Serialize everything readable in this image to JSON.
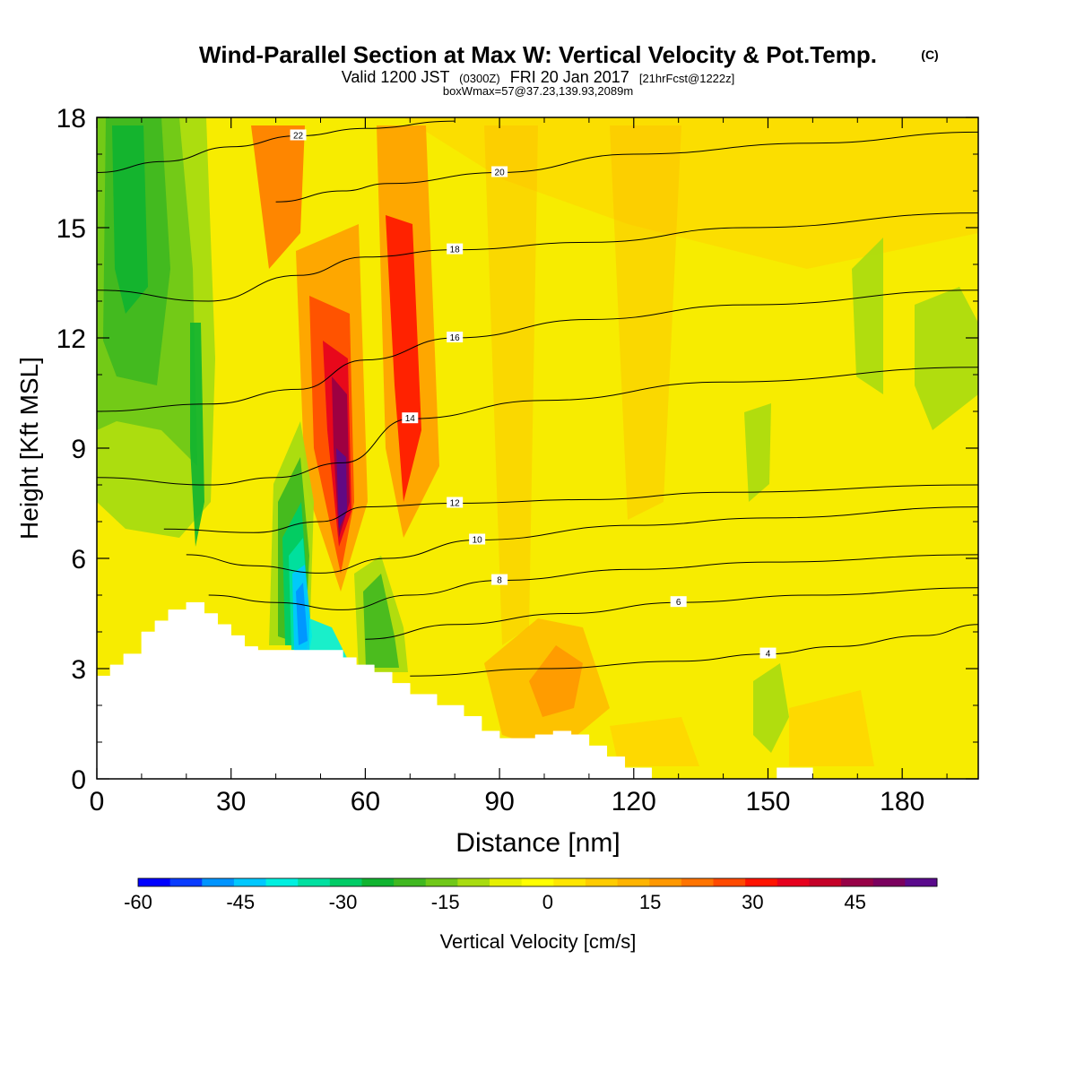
{
  "chart_data": {
    "type": "heatmap",
    "title": "Wind-Parallel Section at Max W: Vertical Velocity & Pot.Temp.",
    "title_mark": "(C)",
    "subtitle": {
      "prefix": "Valid 1200 JST",
      "zulu": "(0300Z)",
      "date": "FRI 20 Jan 2017",
      "forecast": "[21hrFcst@1222z]"
    },
    "box_info": "boxWmax=57@37.23,139.93,2089m",
    "xlabel": "Distance [nm]",
    "ylabel": "Height [Kft MSL]",
    "xlim": [
      0,
      197
    ],
    "ylim": [
      0,
      18
    ],
    "x_ticks": [
      "0",
      "30",
      "60",
      "90",
      "120",
      "150",
      "180"
    ],
    "y_ticks": [
      "0",
      "3",
      "6",
      "9",
      "12",
      "15",
      "18"
    ],
    "colorbar": {
      "label": "Vertical Velocity [cm/s]",
      "range": [
        -60,
        57
      ],
      "tick_labels": [
        "-60",
        "-45",
        "-30",
        "-15",
        "0",
        "15",
        "30",
        "45"
      ],
      "colors": [
        "#0000ff",
        "#0a3cff",
        "#0094ff",
        "#00c8ff",
        "#00f0e0",
        "#00e0a0",
        "#00cc66",
        "#10b430",
        "#40b820",
        "#70c818",
        "#a8dc10",
        "#e6f000",
        "#ffff00",
        "#ffe600",
        "#ffcc00",
        "#ffb400",
        "#ff9800",
        "#ff7400",
        "#ff4a00",
        "#ff1400",
        "#e6001e",
        "#c40028",
        "#960046",
        "#7a005e",
        "#5a0a8c"
      ]
    },
    "terrain_heights_kft": [
      [
        0,
        2.8
      ],
      [
        3,
        3.1
      ],
      [
        6,
        3.4
      ],
      [
        10,
        4.0
      ],
      [
        13,
        4.3
      ],
      [
        16,
        4.6
      ],
      [
        20,
        4.8
      ],
      [
        24,
        4.5
      ],
      [
        27,
        4.2
      ],
      [
        30,
        3.9
      ],
      [
        33,
        3.6
      ],
      [
        36,
        3.5
      ],
      [
        40,
        3.5
      ],
      [
        45,
        3.5
      ],
      [
        50,
        3.5
      ],
      [
        55,
        3.3
      ],
      [
        58,
        3.1
      ],
      [
        62,
        2.9
      ],
      [
        66,
        2.6
      ],
      [
        70,
        2.3
      ],
      [
        76,
        2.0
      ],
      [
        82,
        1.7
      ],
      [
        86,
        1.3
      ],
      [
        90,
        1.1
      ],
      [
        94,
        1.1
      ],
      [
        98,
        1.2
      ],
      [
        102,
        1.3
      ],
      [
        106,
        1.2
      ],
      [
        110,
        0.9
      ],
      [
        114,
        0.6
      ],
      [
        118,
        0.3
      ],
      [
        124,
        0
      ],
      [
        150,
        0
      ],
      [
        152,
        0.3
      ],
      [
        158,
        0.3
      ],
      [
        160,
        0
      ],
      [
        197,
        0
      ]
    ],
    "theta_contours": [
      {
        "label": "4",
        "pts": [
          [
            70,
            2.8
          ],
          [
            100,
            3.0
          ],
          [
            130,
            3.2
          ],
          [
            150,
            3.4
          ],
          [
            165,
            3.6
          ],
          [
            185,
            3.9
          ],
          [
            197,
            4.2
          ]
        ]
      },
      {
        "label": "6",
        "pts": [
          [
            60,
            3.8
          ],
          [
            80,
            4.2
          ],
          [
            105,
            4.5
          ],
          [
            130,
            4.8
          ],
          [
            160,
            5.0
          ],
          [
            197,
            5.2
          ]
        ]
      },
      {
        "label": "8",
        "pts": [
          [
            25,
            5.0
          ],
          [
            40,
            4.8
          ],
          [
            55,
            4.6
          ],
          [
            70,
            5.0
          ],
          [
            90,
            5.4
          ],
          [
            120,
            5.7
          ],
          [
            150,
            5.9
          ],
          [
            197,
            6.1
          ]
        ]
      },
      {
        "label": "10",
        "pts": [
          [
            20,
            6.1
          ],
          [
            35,
            5.8
          ],
          [
            50,
            5.6
          ],
          [
            65,
            6.0
          ],
          [
            85,
            6.5
          ],
          [
            120,
            6.9
          ],
          [
            150,
            7.1
          ],
          [
            197,
            7.4
          ]
        ]
      },
      {
        "label": "12",
        "pts": [
          [
            15,
            6.8
          ],
          [
            35,
            6.7
          ],
          [
            50,
            7.0
          ],
          [
            60,
            7.4
          ],
          [
            80,
            7.5
          ],
          [
            110,
            7.6
          ],
          [
            140,
            7.8
          ],
          [
            197,
            8.0
          ]
        ]
      },
      {
        "label": "14",
        "pts": [
          [
            0,
            8.2
          ],
          [
            25,
            8.0
          ],
          [
            40,
            8.2
          ],
          [
            55,
            8.6
          ],
          [
            70,
            9.8
          ],
          [
            100,
            10.3
          ],
          [
            140,
            10.8
          ],
          [
            197,
            11.2
          ]
        ]
      },
      {
        "label": "16",
        "pts": [
          [
            0,
            10.0
          ],
          [
            25,
            10.2
          ],
          [
            45,
            10.6
          ],
          [
            60,
            11.4
          ],
          [
            80,
            12.0
          ],
          [
            110,
            12.5
          ],
          [
            145,
            12.9
          ],
          [
            197,
            13.3
          ]
        ]
      },
      {
        "label": "18",
        "pts": [
          [
            0,
            13.3
          ],
          [
            25,
            13.0
          ],
          [
            45,
            13.7
          ],
          [
            60,
            14.2
          ],
          [
            80,
            14.4
          ],
          [
            110,
            14.6
          ],
          [
            145,
            15.0
          ],
          [
            197,
            15.4
          ]
        ]
      },
      {
        "label": "20",
        "pts": [
          [
            40,
            15.7
          ],
          [
            55,
            16.0
          ],
          [
            65,
            16.2
          ],
          [
            90,
            16.5
          ],
          [
            120,
            17.0
          ],
          [
            160,
            17.3
          ],
          [
            197,
            17.6
          ]
        ]
      },
      {
        "label": "22",
        "pts": [
          [
            0,
            16.5
          ],
          [
            15,
            16.8
          ],
          [
            30,
            17.2
          ],
          [
            45,
            17.5
          ],
          [
            60,
            17.7
          ],
          [
            80,
            17.9
          ]
        ]
      }
    ]
  }
}
